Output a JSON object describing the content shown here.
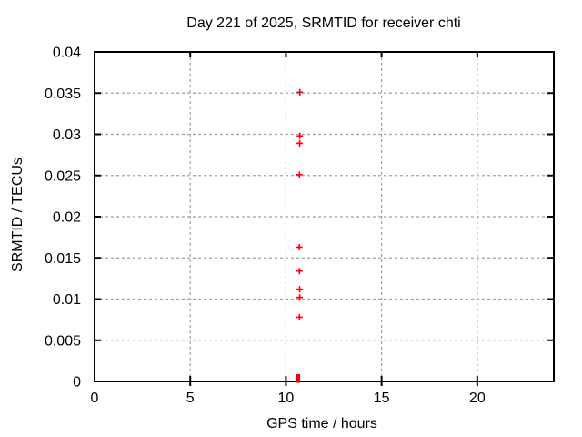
{
  "chart_data": {
    "type": "scatter",
    "title": "Day 221 of 2025, SRMTID for receiver chti",
    "xlabel": "GPS time / hours",
    "ylabel": "SRMTID / TECUs",
    "xlim": [
      0,
      24
    ],
    "ylim": [
      0,
      0.04
    ],
    "x_ticks": [
      0,
      5,
      10,
      15,
      20
    ],
    "y_ticks": [
      0,
      0.005,
      0.01,
      0.015,
      0.02,
      0.025,
      0.03,
      0.035,
      0.04
    ],
    "grid": true,
    "legend": "none",
    "series": [
      {
        "name": "SRMTID",
        "marker": "plus",
        "color": "#ff0000",
        "points": [
          [
            10.73,
            0.0351
          ],
          [
            10.73,
            0.0298
          ],
          [
            10.72,
            0.0289
          ],
          [
            10.71,
            0.0251
          ],
          [
            10.7,
            0.0163
          ],
          [
            10.71,
            0.0134
          ],
          [
            10.72,
            0.0112
          ],
          [
            10.72,
            0.0102
          ],
          [
            10.71,
            0.0078
          ]
        ]
      }
    ],
    "zero_cluster": {
      "x": 10.62,
      "y": 0,
      "marker": "filled-square",
      "color": "#ee0000",
      "note": "dense overlap of samples at zero on the x-axis"
    },
    "colors": {
      "background": "#ffffff",
      "axis": "#000000",
      "grid": "#a0a0a0",
      "text": "#000000"
    }
  }
}
